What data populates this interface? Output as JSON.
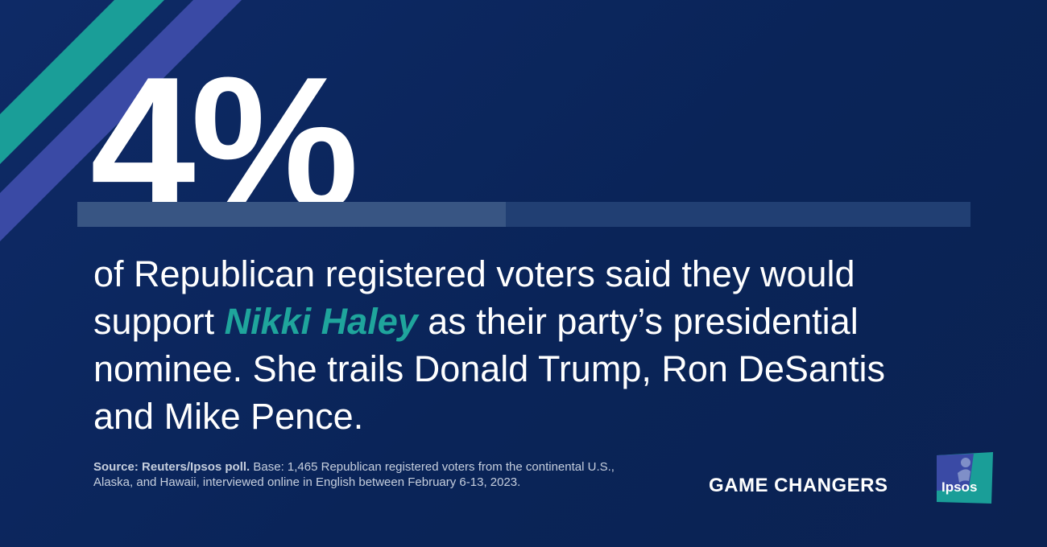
{
  "headline": {
    "value": "4%",
    "fraction": 0.48
  },
  "statement": {
    "before": "of Republican registered voters said they would support ",
    "highlight": "Nikki Haley",
    "after": " as their party’s presidential nominee. She trails Donald Trump, Ron DeSantis and Mike Pence."
  },
  "source": {
    "label": "Source: Reuters/Ipsos poll.",
    "text": " Base: 1,465 Republican registered voters from the continental U.S., Alaska, and Hawaii, interviewed online in English between February 6-13, 2023."
  },
  "branding": {
    "tagline": "GAME CHANGERS",
    "logo_text": "Ipsos"
  },
  "colors": {
    "background": "#0b2458",
    "accent_teal": "#1fa59c",
    "accent_indigo": "#3a4aa5",
    "bar_fill": "#385583",
    "bar_track": "#213f73"
  },
  "icons": {
    "logo": "ipsos-logo-icon"
  }
}
